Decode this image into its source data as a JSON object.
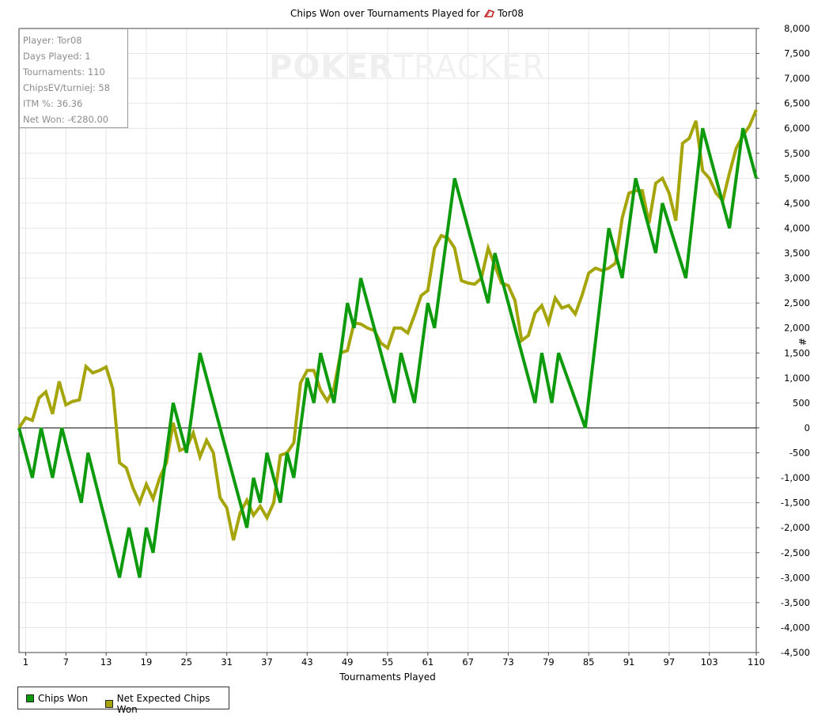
{
  "title": {
    "prefix": "Chips Won over Tournaments Played for",
    "player": "Tor08",
    "icon": "player-icon"
  },
  "stats": {
    "player": "Player: Tor08",
    "days": "Days Played: 1",
    "tournaments": "Tournaments: 110",
    "chips_ev": "ChipsEV/turniej: 58",
    "itm": "ITM %: 36.36",
    "net_won": "Net Won: -€280.00"
  },
  "watermark": {
    "part1": "POKER",
    "part2": "TRACKER"
  },
  "legend": {
    "chips_won": "Chips Won",
    "net_expected": "Net Expected Chips Won"
  },
  "chart_data": {
    "type": "line",
    "xlabel": "Tournaments Played",
    "ylabel": "#",
    "xlim": [
      0,
      110
    ],
    "ylim": [
      -4500,
      8000
    ],
    "x_ticks": [
      1,
      7,
      13,
      19,
      25,
      31,
      37,
      43,
      49,
      55,
      61,
      67,
      73,
      79,
      85,
      91,
      97,
      103,
      110
    ],
    "y_ticks": [
      8000,
      7500,
      7000,
      6500,
      6000,
      5500,
      5000,
      4500,
      4000,
      3500,
      3000,
      2500,
      2000,
      1500,
      1000,
      500,
      0,
      -500,
      -1000,
      -1500,
      -2000,
      -2500,
      -3000,
      -3500,
      -4000,
      -4500
    ],
    "y_tick_labels": [
      "8,000",
      "7,500",
      "7,000",
      "6,500",
      "6,000",
      "5,500",
      "5,000",
      "4,500",
      "4,000",
      "3,500",
      "3,000",
      "2,500",
      "2,000",
      "1,500",
      "1,000",
      "500",
      "0",
      "-500",
      "-1,000",
      "-1,500",
      "-2,000",
      "-2,500",
      "-3,000",
      "-3,500",
      "-4,000",
      "-4,500"
    ],
    "grid": true,
    "legend_position": "bottom-left",
    "colors": {
      "chips_won": "#0d9a0d",
      "net_expected": "#a5a50a"
    },
    "series": [
      {
        "name": "Chips Won",
        "points": [
          [
            0,
            0
          ],
          [
            2,
            -1000
          ],
          [
            3.3,
            0
          ],
          [
            5,
            -1000
          ],
          [
            6.4,
            0
          ],
          [
            9.3,
            -1500
          ],
          [
            10.3,
            -500
          ],
          [
            15,
            -3000
          ],
          [
            16.4,
            -2000
          ],
          [
            18,
            -3000
          ],
          [
            19,
            -2000
          ],
          [
            20,
            -2500
          ],
          [
            23,
            500
          ],
          [
            25,
            -500
          ],
          [
            27,
            1500
          ],
          [
            34,
            -2000
          ],
          [
            35,
            -1000
          ],
          [
            36,
            -1500
          ],
          [
            37,
            -500
          ],
          [
            39,
            -1500
          ],
          [
            40,
            -500
          ],
          [
            41,
            -1000
          ],
          [
            43,
            1000
          ],
          [
            44,
            500
          ],
          [
            45,
            1500
          ],
          [
            47,
            500
          ],
          [
            49,
            2500
          ],
          [
            50,
            2000
          ],
          [
            51,
            3000
          ],
          [
            56,
            500
          ],
          [
            57,
            1500
          ],
          [
            59,
            500
          ],
          [
            61,
            2500
          ],
          [
            62,
            2000
          ],
          [
            65,
            5000
          ],
          [
            70,
            2500
          ],
          [
            71,
            3500
          ],
          [
            77,
            500
          ],
          [
            78,
            1500
          ],
          [
            79.5,
            500
          ],
          [
            80.5,
            1500
          ],
          [
            84.5,
            0
          ],
          [
            88,
            4000
          ],
          [
            90,
            3000
          ],
          [
            92,
            5000
          ],
          [
            95,
            3500
          ],
          [
            96,
            4500
          ],
          [
            99.5,
            3000
          ],
          [
            102,
            6000
          ],
          [
            106,
            4000
          ],
          [
            108,
            6000
          ],
          [
            110,
            5000
          ]
        ]
      },
      {
        "name": "Net Expected Chips Won",
        "points": [
          [
            0,
            0
          ],
          [
            1,
            200
          ],
          [
            2,
            150
          ],
          [
            3,
            600
          ],
          [
            4,
            720
          ],
          [
            5,
            280
          ],
          [
            6,
            930
          ],
          [
            7,
            460
          ],
          [
            8,
            530
          ],
          [
            9,
            560
          ],
          [
            10,
            1230
          ],
          [
            11,
            1100
          ],
          [
            12,
            1150
          ],
          [
            13,
            1220
          ],
          [
            14,
            780
          ],
          [
            15,
            -700
          ],
          [
            16,
            -800
          ],
          [
            17,
            -1200
          ],
          [
            18,
            -1500
          ],
          [
            19,
            -1130
          ],
          [
            20,
            -1420
          ],
          [
            21,
            -1000
          ],
          [
            22,
            -700
          ],
          [
            23,
            100
          ],
          [
            24,
            -450
          ],
          [
            25,
            -400
          ],
          [
            26,
            -100
          ],
          [
            27,
            -580
          ],
          [
            28,
            -250
          ],
          [
            29,
            -500
          ],
          [
            30,
            -1400
          ],
          [
            31,
            -1600
          ],
          [
            32,
            -2250
          ],
          [
            33,
            -1700
          ],
          [
            34,
            -1450
          ],
          [
            35,
            -1750
          ],
          [
            36,
            -1570
          ],
          [
            37,
            -1800
          ],
          [
            38,
            -1500
          ],
          [
            39,
            -550
          ],
          [
            40,
            -500
          ],
          [
            41,
            -300
          ],
          [
            42,
            900
          ],
          [
            43,
            1150
          ],
          [
            44,
            1150
          ],
          [
            45,
            750
          ],
          [
            46,
            540
          ],
          [
            47,
            800
          ],
          [
            48,
            1500
          ],
          [
            49,
            1550
          ],
          [
            50,
            2100
          ],
          [
            51,
            2080
          ],
          [
            52,
            2000
          ],
          [
            53,
            1950
          ],
          [
            54,
            1700
          ],
          [
            55,
            1600
          ],
          [
            56,
            2000
          ],
          [
            57,
            2000
          ],
          [
            58,
            1900
          ],
          [
            59,
            2250
          ],
          [
            60,
            2650
          ],
          [
            61,
            2750
          ],
          [
            62,
            3600
          ],
          [
            63,
            3850
          ],
          [
            64,
            3800
          ],
          [
            65,
            3600
          ],
          [
            66,
            2950
          ],
          [
            67,
            2900
          ],
          [
            68,
            2880
          ],
          [
            69,
            3000
          ],
          [
            70,
            3600
          ],
          [
            71,
            3250
          ],
          [
            72,
            2900
          ],
          [
            73,
            2850
          ],
          [
            74,
            2550
          ],
          [
            75,
            1750
          ],
          [
            76,
            1850
          ],
          [
            77,
            2300
          ],
          [
            78,
            2450
          ],
          [
            79,
            2100
          ],
          [
            80,
            2600
          ],
          [
            81,
            2400
          ],
          [
            82,
            2450
          ],
          [
            83,
            2280
          ],
          [
            84,
            2650
          ],
          [
            85,
            3100
          ],
          [
            86,
            3200
          ],
          [
            87,
            3150
          ],
          [
            88,
            3200
          ],
          [
            89,
            3300
          ],
          [
            90,
            4200
          ],
          [
            91,
            4700
          ],
          [
            92,
            4750
          ],
          [
            93,
            4750
          ],
          [
            94,
            4100
          ],
          [
            95,
            4900
          ],
          [
            96,
            5000
          ],
          [
            97,
            4700
          ],
          [
            98,
            4150
          ],
          [
            99,
            5700
          ],
          [
            100,
            5800
          ],
          [
            101,
            6150
          ],
          [
            102,
            5150
          ],
          [
            103,
            5000
          ],
          [
            104,
            4700
          ],
          [
            105,
            4550
          ],
          [
            106,
            5100
          ],
          [
            107,
            5600
          ],
          [
            108,
            5850
          ],
          [
            109,
            6050
          ],
          [
            110,
            6370
          ]
        ]
      }
    ]
  }
}
